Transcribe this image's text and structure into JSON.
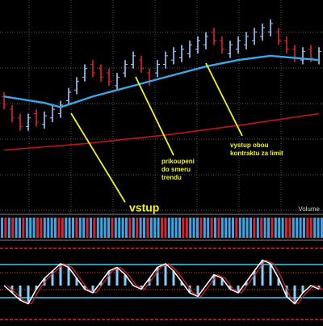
{
  "price": {
    "ylim": [
      0,
      100
    ],
    "high": [
      57,
      51,
      47,
      47,
      49,
      48,
      51,
      53,
      59,
      64,
      70,
      72,
      70,
      68,
      66,
      72,
      76,
      74,
      68,
      72,
      76,
      78,
      79,
      81,
      83,
      85,
      87,
      83,
      81,
      83,
      85,
      87,
      89,
      91,
      87,
      83,
      79,
      78,
      79,
      78
    ],
    "low": [
      49,
      43,
      39,
      39,
      41,
      40,
      43,
      45,
      51,
      56,
      62,
      64,
      62,
      60,
      58,
      64,
      68,
      66,
      60,
      64,
      68,
      70,
      71,
      73,
      75,
      77,
      79,
      75,
      73,
      75,
      77,
      79,
      81,
      83,
      79,
      75,
      71,
      70,
      71,
      70
    ],
    "up": [
      false,
      false,
      false,
      true,
      false,
      true,
      true,
      true,
      true,
      true,
      true,
      false,
      false,
      false,
      true,
      true,
      true,
      false,
      false,
      true,
      true,
      true,
      true,
      true,
      true,
      true,
      false,
      false,
      true,
      true,
      true,
      true,
      true,
      true,
      false,
      false,
      false,
      true,
      false,
      true
    ],
    "ma_fast": {
      "x": [
        0,
        5,
        7,
        11,
        16,
        21,
        25,
        29,
        33,
        39
      ],
      "values": [
        55,
        52,
        50,
        55,
        60,
        65,
        69,
        72,
        74,
        72
      ]
    },
    "ma_slow": {
      "x": [
        0,
        10,
        20,
        30,
        39
      ],
      "values": [
        30,
        33,
        37,
        42,
        47
      ]
    }
  },
  "volume_label": "Volume",
  "oscillator": {
    "ylim": [
      0,
      100
    ],
    "values": [
      50,
      40,
      30,
      25,
      45,
      60,
      70,
      80,
      75,
      60,
      45,
      40,
      55,
      70,
      75,
      65,
      50,
      45,
      60,
      75,
      80,
      70,
      55,
      40,
      35,
      50,
      65,
      60,
      45,
      40,
      55,
      70,
      85,
      80,
      60,
      35,
      25,
      40,
      50,
      45
    ]
  },
  "annotations": [
    {
      "lines": [
        "vstup"
      ]
    },
    {
      "lines": [
        "prikoupeni",
        "do smeru",
        "trendu"
      ]
    },
    {
      "lines": [
        "vystup obou",
        "kontraktu za limit"
      ]
    }
  ]
}
